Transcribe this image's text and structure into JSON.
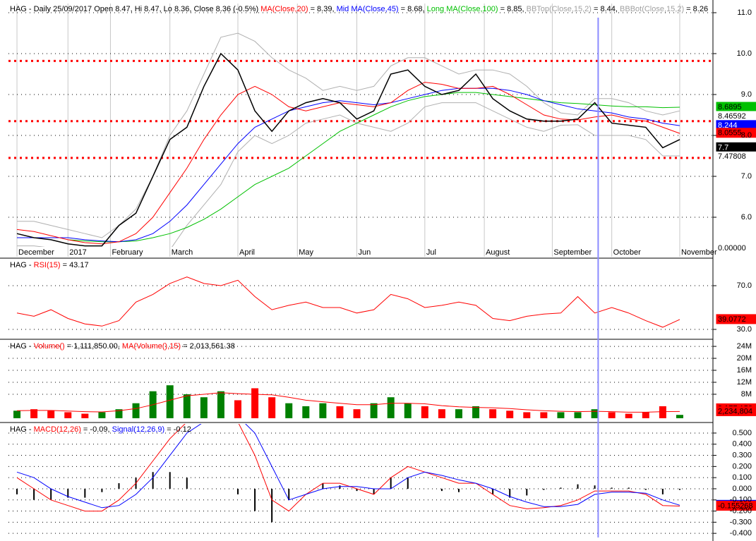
{
  "chart_data": [
    {
      "type": "line",
      "title_parts": [
        {
          "text": "HAG - Daily 25/09/2017 Open 8.47, Hi 8.47, Lo 8.36, Close 8.36 (-0.5%) ",
          "color": "#000000"
        },
        {
          "text": "MA(Close,20)",
          "color": "#ff0000"
        },
        {
          "text": " = 8.39, ",
          "color": "#000000"
        },
        {
          "text": "Mid MA(Close,45)",
          "color": "#0000ff"
        },
        {
          "text": " = 8.68, ",
          "color": "#000000"
        },
        {
          "text": "Long MA(Close,100)",
          "color": "#00c000"
        },
        {
          "text": " = 8.85, ",
          "color": "#000000"
        },
        {
          "text": "BBTop(Close,15,2)",
          "color": "#a0a0a0"
        },
        {
          "text": " = 8.44, ",
          "color": "#000000"
        },
        {
          "text": "BBBot(Close,15,2)",
          "color": "#a0a0a0"
        },
        {
          "text": " = 8.26",
          "color": "#000000"
        }
      ],
      "xlim": [
        -0.5,
        39.5
      ],
      "xticks": [
        {
          "value": 0,
          "label": "December"
        },
        {
          "value": 3,
          "label": "2017"
        },
        {
          "value": 5.5,
          "label": "February"
        },
        {
          "value": 9,
          "label": "March"
        },
        {
          "value": 13,
          "label": "April"
        },
        {
          "value": 16.5,
          "label": "May"
        },
        {
          "value": 20,
          "label": "Jun"
        },
        {
          "value": 24,
          "label": "Jul"
        },
        {
          "value": 27.5,
          "label": "August"
        },
        {
          "value": 31.5,
          "label": "September"
        },
        {
          "value": 35,
          "label": "October"
        },
        {
          "value": 39,
          "label": "November"
        }
      ],
      "ylim": [
        5.276,
        11.224
      ],
      "yticks": [
        {
          "value": 6,
          "label": "6.0"
        },
        {
          "value": 7,
          "label": "7.0"
        },
        {
          "value": 8,
          "label": "8.0"
        },
        {
          "value": 9,
          "label": "9.0"
        },
        {
          "value": 10,
          "label": "10.0"
        },
        {
          "value": 11,
          "label": "11.0"
        }
      ],
      "levels": [
        9.82,
        8.35,
        7.45
      ],
      "cursor_x": 34.2,
      "series": [
        {
          "name": "BBTop(Close,15,2)",
          "color": "#b0b0b0",
          "values": [
            5.9,
            5.9,
            5.8,
            5.7,
            5.6,
            5.5,
            5.8,
            6.2,
            7.0,
            8.0,
            8.6,
            9.5,
            10.4,
            10.5,
            10.3,
            9.9,
            9.6,
            9.4,
            9.1,
            9.2,
            9.1,
            9.2,
            9.7,
            9.9,
            9.9,
            9.7,
            9.5,
            9.6,
            9.6,
            9.5,
            9.2,
            8.8,
            8.55,
            8.5,
            8.9,
            8.9,
            8.8,
            8.6,
            8.5,
            8.6
          ]
        },
        {
          "name": "BBBot(Close,15,2)",
          "color": "#b0b0b0",
          "values": [
            5.3,
            5.3,
            5.25,
            5.2,
            5.2,
            5.2,
            5.1,
            5.0,
            4.9,
            5.2,
            5.8,
            6.3,
            6.8,
            7.6,
            8.0,
            7.8,
            8.0,
            8.3,
            8.4,
            8.5,
            8.3,
            8.2,
            8.1,
            8.3,
            8.7,
            8.8,
            8.8,
            8.8,
            8.6,
            8.4,
            8.2,
            8.1,
            8.25,
            8.26,
            8.0,
            8.0,
            8.0,
            7.9,
            7.5,
            7.5
          ]
        },
        {
          "name": "Long MA(Close,100)",
          "color": "#00c000",
          "values": [
            null,
            null,
            null,
            5.45,
            5.42,
            5.4,
            5.4,
            5.42,
            5.5,
            5.6,
            5.75,
            5.95,
            6.2,
            6.5,
            6.8,
            7.0,
            7.2,
            7.5,
            7.8,
            8.1,
            8.3,
            8.5,
            8.7,
            8.85,
            8.95,
            9.0,
            9.05,
            9.05,
            9.0,
            8.95,
            8.9,
            8.85,
            8.8,
            8.78,
            8.75,
            8.72,
            8.7,
            8.7,
            8.68,
            8.69
          ]
        },
        {
          "name": "Mid MA(Close,45)",
          "color": "#0000ff",
          "values": [
            5.5,
            5.5,
            5.5,
            5.5,
            5.45,
            5.42,
            5.4,
            5.45,
            5.6,
            5.9,
            6.3,
            6.8,
            7.3,
            7.8,
            8.2,
            8.4,
            8.6,
            8.7,
            8.8,
            8.85,
            8.8,
            8.75,
            8.8,
            8.9,
            9.0,
            9.1,
            9.15,
            9.15,
            9.15,
            9.1,
            9.0,
            8.85,
            8.75,
            8.65,
            8.6,
            8.55,
            8.45,
            8.4,
            8.3,
            8.24
          ]
        },
        {
          "name": "MA(Close,20)",
          "color": "#ff0000",
          "values": [
            5.7,
            5.65,
            5.55,
            5.45,
            5.38,
            5.35,
            5.4,
            5.6,
            6.0,
            6.6,
            7.2,
            7.9,
            8.5,
            9.0,
            9.2,
            9.0,
            8.7,
            8.6,
            8.7,
            8.8,
            8.75,
            8.7,
            8.8,
            9.1,
            9.3,
            9.25,
            9.15,
            9.15,
            9.2,
            9.0,
            8.75,
            8.5,
            8.4,
            8.38,
            8.45,
            8.5,
            8.4,
            8.35,
            8.2,
            8.05
          ]
        },
        {
          "name": "Close",
          "color": "#000000",
          "values": [
            5.6,
            5.5,
            5.45,
            5.35,
            5.3,
            5.3,
            5.8,
            6.1,
            7.0,
            7.9,
            8.2,
            9.2,
            10.0,
            9.6,
            8.6,
            8.1,
            8.6,
            8.8,
            8.9,
            8.8,
            8.4,
            8.6,
            9.5,
            9.6,
            9.2,
            9.0,
            9.1,
            9.5,
            8.9,
            8.6,
            8.4,
            8.35,
            8.35,
            8.4,
            8.8,
            8.3,
            8.25,
            8.2,
            7.7,
            7.9
          ]
        }
      ],
      "value_boxes": [
        {
          "value": 8.6895,
          "color": "#00c000",
          "text_color": "#000000"
        },
        {
          "value": 8.46592,
          "color": "#ffffff",
          "text_color": "#000000"
        },
        {
          "value": 8.244,
          "color": "#0000ff",
          "text_color": "#ffffff"
        },
        {
          "value": 8.0555,
          "color": "#ff0000",
          "text_color": "#000000"
        },
        {
          "value": 7.7,
          "color": "#000000",
          "text_color": "#ffffff"
        },
        {
          "value": 7.7,
          "color": "#000000",
          "text_color": "#ffffff"
        },
        {
          "value": 7.47808,
          "color": "#ffffff",
          "text_color": "#000000"
        }
      ],
      "overlay_label": "0.00000"
    },
    {
      "type": "line",
      "title_parts": [
        {
          "text": "HAG - ",
          "color": "#000000"
        },
        {
          "text": "RSI(15)",
          "color": "#ff0000"
        },
        {
          "text": " = 43.17",
          "color": "#000000"
        }
      ],
      "ylim": [
        21.6,
        93.9
      ],
      "yticks": [
        {
          "value": 30,
          "label": "30.0"
        },
        {
          "value": 70,
          "label": "70.0"
        }
      ],
      "series": [
        {
          "name": "RSI(15)",
          "color": "#ff0000",
          "values": [
            45,
            42,
            48,
            40,
            35,
            33,
            38,
            55,
            62,
            72,
            78,
            72,
            70,
            75,
            60,
            48,
            52,
            55,
            50,
            50,
            45,
            48,
            62,
            58,
            50,
            52,
            55,
            52,
            40,
            38,
            42,
            44,
            45,
            60,
            45,
            50,
            45,
            38,
            32,
            39.0772
          ]
        }
      ],
      "value_boxes": [
        {
          "value": 39.0772,
          "color": "#ff0000",
          "text_color": "#000000"
        }
      ]
    },
    {
      "type": "bar",
      "title_parts": [
        {
          "text": "HAG - ",
          "color": "#000000"
        },
        {
          "text": "Volume()",
          "color": "#ff0000"
        },
        {
          "text": " = 1,111,850.00, ",
          "color": "#000000"
        },
        {
          "text": "MA(Volume(),15)",
          "color": "#ff0000"
        },
        {
          "text": " = 2,013,561.38",
          "color": "#000000"
        }
      ],
      "ylim": [
        -1200000,
        25900000
      ],
      "yticks": [
        {
          "value": 8000000,
          "label": "8M"
        },
        {
          "value": 12000000,
          "label": "12M"
        },
        {
          "value": 16000000,
          "label": "16M"
        },
        {
          "value": 20000000,
          "label": "20M"
        },
        {
          "value": 24000000,
          "label": "24M"
        }
      ],
      "up_color": "#008000",
      "down_color": "#ff0000",
      "values": [
        2500000,
        3000000,
        2500000,
        2000000,
        1500000,
        2000000,
        3000000,
        5000000,
        9000000,
        11000000,
        8000000,
        7000000,
        9000000,
        6000000,
        10000000,
        7000000,
        5000000,
        4000000,
        5000000,
        4000000,
        3000000,
        5000000,
        7000000,
        5000000,
        4000000,
        3000000,
        3000000,
        4000000,
        3000000,
        2500000,
        2000000,
        2000000,
        2000000,
        2000000,
        3000000,
        2000000,
        1500000,
        2000000,
        4000000,
        1111850
      ],
      "series": [
        {
          "name": "MA(Volume(),15)",
          "color": "#ff0000",
          "values": [
            2500000,
            2600000,
            2600000,
            2400000,
            2200000,
            2100000,
            2500000,
            3200000,
            4500000,
            6000000,
            7500000,
            8000000,
            8500000,
            8200000,
            8000000,
            7800000,
            7000000,
            6000000,
            5500000,
            5000000,
            4500000,
            4500000,
            5000000,
            5000000,
            4800000,
            4200000,
            3800000,
            3600000,
            3500000,
            3200000,
            2800000,
            2500000,
            2300000,
            2200000,
            2300000,
            2200000,
            2000000,
            2000000,
            2200000,
            2230000
          ]
        }
      ],
      "value_boxes": [
        {
          "value": 3177152,
          "label": "3,177,152",
          "color": "#ff0000",
          "text_color": "#000000"
        },
        {
          "value": 2234804,
          "label": "2,234,804",
          "color": "#ff0000",
          "text_color": "#000000"
        }
      ]
    },
    {
      "type": "line",
      "title_parts": [
        {
          "text": "HAG - ",
          "color": "#000000"
        },
        {
          "text": "MACD(12,26)",
          "color": "#ff0000"
        },
        {
          "text": " = -0.09, ",
          "color": "#000000"
        },
        {
          "text": "Signal(12,26,9)",
          "color": "#0000ff"
        },
        {
          "text": " = -0.12",
          "color": "#000000"
        }
      ],
      "ylim": [
        -0.437,
        0.582
      ],
      "yticks": [
        {
          "value": 0.5,
          "label": "0.500"
        },
        {
          "value": 0.4,
          "label": "0.400"
        },
        {
          "value": 0.3,
          "label": "0.300"
        },
        {
          "value": 0.2,
          "label": "0.200"
        },
        {
          "value": 0.1,
          "label": "0.100"
        },
        {
          "value": 0,
          "label": "0.000"
        },
        {
          "value": -0.1,
          "label": "-0.100"
        },
        {
          "value": -0.2,
          "label": "-0.200"
        },
        {
          "value": -0.3,
          "label": "-0.300"
        },
        {
          "value": -0.4,
          "label": "-0.400"
        }
      ],
      "histogram": [
        -0.05,
        -0.1,
        -0.1,
        -0.08,
        -0.08,
        -0.03,
        0.05,
        0.1,
        0.15,
        0.15,
        0.1,
        0.0,
        0.0,
        -0.05,
        -0.2,
        -0.3,
        -0.1,
        0.0,
        0.05,
        0.03,
        -0.02,
        -0.05,
        0.1,
        0.1,
        0.0,
        -0.02,
        -0.03,
        0.0,
        -0.05,
        -0.08,
        -0.06,
        -0.01,
        0.01,
        0.04,
        0.03,
        0.01,
        0.01,
        -0.01,
        -0.05,
        -0.01
      ],
      "series": [
        {
          "name": "MACD(12,26)",
          "color": "#ff0000",
          "values": [
            0.1,
            0.0,
            -0.1,
            -0.15,
            -0.2,
            -0.2,
            -0.1,
            0.05,
            0.25,
            0.45,
            0.6,
            0.6,
            0.65,
            0.6,
            0.3,
            -0.1,
            -0.2,
            -0.05,
            0.05,
            0.05,
            0.0,
            -0.05,
            0.1,
            0.2,
            0.15,
            0.1,
            0.05,
            0.05,
            -0.05,
            -0.15,
            -0.18,
            -0.17,
            -0.15,
            -0.1,
            -0.02,
            -0.02,
            -0.02,
            -0.05,
            -0.15,
            -0.155268
          ]
        },
        {
          "name": "Signal(12,26,9)",
          "color": "#0000ff",
          "values": [
            0.15,
            0.1,
            0.0,
            -0.07,
            -0.12,
            -0.17,
            -0.15,
            -0.05,
            0.1,
            0.3,
            0.5,
            0.6,
            0.65,
            0.65,
            0.5,
            0.2,
            -0.1,
            -0.05,
            0.0,
            0.02,
            0.02,
            0.0,
            0.0,
            0.1,
            0.15,
            0.12,
            0.08,
            0.05,
            0.0,
            -0.07,
            -0.12,
            -0.16,
            -0.16,
            -0.14,
            -0.05,
            -0.03,
            -0.03,
            -0.04,
            -0.1,
            -0.147785
          ]
        }
      ],
      "value_boxes": [
        {
          "value": -0.147785,
          "color": "#0000ff",
          "text_color": "#ffffff"
        },
        {
          "value": -0.155268,
          "color": "#ff0000",
          "text_color": "#000000"
        }
      ]
    }
  ]
}
